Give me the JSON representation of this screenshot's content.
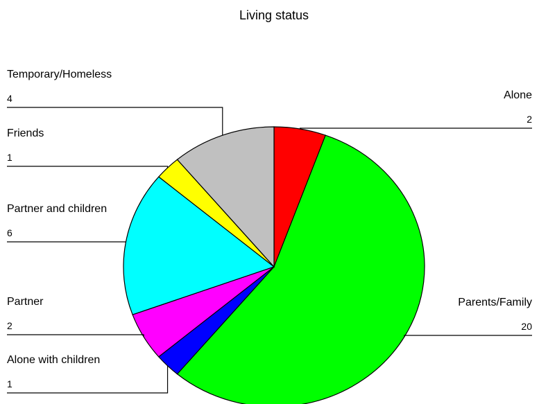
{
  "chart_data": {
    "type": "pie",
    "title": "Living status",
    "categories": [
      "Alone",
      "Parents/Family",
      "Alone with children",
      "Partner",
      "Partner and children",
      "Friends",
      "Temporary/Homeless"
    ],
    "values": [
      2,
      20,
      1,
      2,
      6,
      1,
      4
    ],
    "colors": [
      "#ff0000",
      "#00ff00",
      "#0000ff",
      "#ff00ff",
      "#00ffff",
      "#ffff00",
      "#c0c0c0"
    ]
  }
}
